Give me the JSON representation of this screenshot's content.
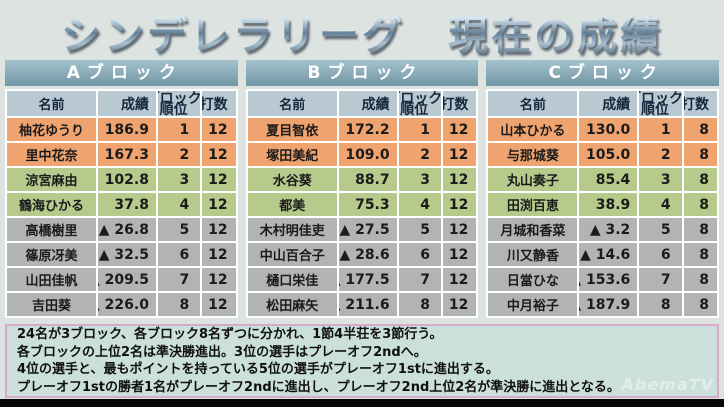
{
  "page": {
    "title": "シンデレラリーグ　現在の成績",
    "watermark": "AbemaTV"
  },
  "table_headers": {
    "name": "名前",
    "score": "成績",
    "rank_line1": "ブロック",
    "rank_line2": "順位",
    "hands": "打数"
  },
  "blocks": [
    {
      "label": "Aブロック",
      "players": [
        {
          "name": "柚花ゆうり",
          "score": "186.9",
          "rank": "1",
          "hands": "12"
        },
        {
          "name": "里中花奈",
          "score": "167.3",
          "rank": "2",
          "hands": "12"
        },
        {
          "name": "涼宮麻由",
          "score": "102.8",
          "rank": "3",
          "hands": "12"
        },
        {
          "name": "鶴海ひかる",
          "score": "37.8",
          "rank": "4",
          "hands": "12"
        },
        {
          "name": "高橋樹里",
          "score": "▲ 26.8",
          "rank": "5",
          "hands": "12"
        },
        {
          "name": "篠原冴美",
          "score": "▲ 32.5",
          "rank": "6",
          "hands": "12"
        },
        {
          "name": "山田佳帆",
          "score": "▲ 209.5",
          "rank": "7",
          "hands": "12"
        },
        {
          "name": "吉田葵",
          "score": "▲ 226.0",
          "rank": "8",
          "hands": "12"
        }
      ]
    },
    {
      "label": "Bブロック",
      "players": [
        {
          "name": "夏目智依",
          "score": "172.2",
          "rank": "1",
          "hands": "12"
        },
        {
          "name": "塚田美紀",
          "score": "109.0",
          "rank": "2",
          "hands": "12"
        },
        {
          "name": "水谷葵",
          "score": "88.7",
          "rank": "3",
          "hands": "12"
        },
        {
          "name": "都美",
          "score": "75.3",
          "rank": "4",
          "hands": "12"
        },
        {
          "name": "木村明佳吏",
          "score": "▲ 27.5",
          "rank": "5",
          "hands": "12"
        },
        {
          "name": "中山百合子",
          "score": "▲ 28.6",
          "rank": "6",
          "hands": "12"
        },
        {
          "name": "樋口栄佳",
          "score": "▲ 177.5",
          "rank": "7",
          "hands": "12"
        },
        {
          "name": "松田麻矢",
          "score": "▲ 211.6",
          "rank": "8",
          "hands": "12"
        }
      ]
    },
    {
      "label": "Cブロック",
      "players": [
        {
          "name": "山本ひかる",
          "score": "130.0",
          "rank": "1",
          "hands": "8"
        },
        {
          "name": "与那城葵",
          "score": "105.0",
          "rank": "2",
          "hands": "8"
        },
        {
          "name": "丸山奏子",
          "score": "85.4",
          "rank": "3",
          "hands": "8"
        },
        {
          "name": "田渕百恵",
          "score": "38.9",
          "rank": "4",
          "hands": "8"
        },
        {
          "name": "月城和香菜",
          "score": "▲ 3.2",
          "rank": "5",
          "hands": "8"
        },
        {
          "name": "川又静香",
          "score": "▲ 14.6",
          "rank": "6",
          "hands": "8"
        },
        {
          "name": "日當ひな",
          "score": "▲ 153.6",
          "rank": "7",
          "hands": "8"
        },
        {
          "name": "中月裕子",
          "score": "▲ 187.9",
          "rank": "8",
          "hands": "8"
        }
      ]
    }
  ],
  "footer": {
    "lines": [
      "24名が3ブロック、各ブロック8名ずつに分かれ、1節4半荘を3節行う。",
      "各ブロックの上位2名は準決勝進出。3位の選手はプレーオフ2ndへ。",
      "4位の選手と、最もポイントを持っている5位の選手がプレーオフ1stに進出する。",
      "プレーオフ1stの勝者1名がプレーオフ2ndに進出し、プレーオフ2nd上位2名が準決勝に進出となる。"
    ]
  },
  "colors": {
    "block_header_top": "#a3c3cb",
    "block_header_bottom": "#7295a5",
    "column_header_bg": "#b9c9d2",
    "rank_1_2_bg": "#efa36f",
    "rank_3_4_bg": "#b6ca8c",
    "rank_5_8_bg": "#b2b4b4",
    "rules_box_bg": "#cbdfdb",
    "rules_box_border": "#d6abc9"
  },
  "chart_data": [
    {
      "type": "table",
      "title": "Aブロック",
      "columns": [
        "名前",
        "成績",
        "ブロック順位",
        "打数"
      ],
      "rows": [
        [
          "柚花ゆうり",
          186.9,
          1,
          12
        ],
        [
          "里中花奈",
          167.3,
          2,
          12
        ],
        [
          "涼宮麻由",
          102.8,
          3,
          12
        ],
        [
          "鶴海ひかる",
          37.8,
          4,
          12
        ],
        [
          "高橋樹里",
          -26.8,
          5,
          12
        ],
        [
          "篠原冴美",
          -32.5,
          6,
          12
        ],
        [
          "山田佳帆",
          -209.5,
          7,
          12
        ],
        [
          "吉田葵",
          -226.0,
          8,
          12
        ]
      ]
    },
    {
      "type": "table",
      "title": "Bブロック",
      "columns": [
        "名前",
        "成績",
        "ブロック順位",
        "打数"
      ],
      "rows": [
        [
          "夏目智依",
          172.2,
          1,
          12
        ],
        [
          "塚田美紀",
          109.0,
          2,
          12
        ],
        [
          "水谷葵",
          88.7,
          3,
          12
        ],
        [
          "都美",
          75.3,
          4,
          12
        ],
        [
          "木村明佳吏",
          -27.5,
          5,
          12
        ],
        [
          "中山百合子",
          -28.6,
          6,
          12
        ],
        [
          "樋口栄佳",
          -177.5,
          7,
          12
        ],
        [
          "松田麻矢",
          -211.6,
          8,
          12
        ]
      ]
    },
    {
      "type": "table",
      "title": "Cブロック",
      "columns": [
        "名前",
        "成績",
        "ブロック順位",
        "打数"
      ],
      "rows": [
        [
          "山本ひかる",
          130.0,
          1,
          8
        ],
        [
          "与那城葵",
          105.0,
          2,
          8
        ],
        [
          "丸山奏子",
          85.4,
          3,
          8
        ],
        [
          "田渕百恵",
          38.9,
          4,
          8
        ],
        [
          "月城和香菜",
          -3.2,
          5,
          8
        ],
        [
          "川又静香",
          -14.6,
          6,
          8
        ],
        [
          "日當ひな",
          -153.6,
          7,
          8
        ],
        [
          "中月裕子",
          -187.9,
          8,
          8
        ]
      ]
    }
  ]
}
